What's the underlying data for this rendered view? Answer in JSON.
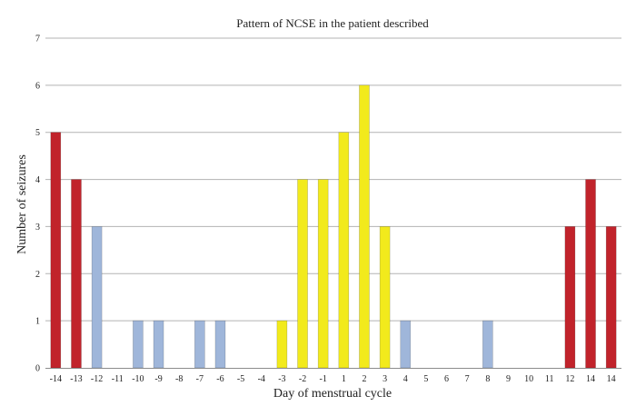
{
  "chart_data": {
    "type": "bar",
    "title": "Pattern of NCSE in the patient described",
    "xlabel": "Day of menstrual cycle",
    "ylabel": "Number of seizures",
    "ylim": [
      0,
      7
    ],
    "yticks": [
      "0",
      "1",
      "2",
      "3",
      "4",
      "5",
      "6",
      "7"
    ],
    "grid": true,
    "categories": [
      "-14",
      "-13",
      "-12",
      "-11",
      "-10",
      "-9",
      "-8",
      "-7",
      "-6",
      "-5",
      "-4",
      "-3",
      "-2",
      "-1",
      "1",
      "2",
      "3",
      "4",
      "5",
      "6",
      "7",
      "8",
      "9",
      "10",
      "11",
      "12",
      "14",
      "14"
    ],
    "values": [
      5,
      4,
      3,
      0,
      1,
      1,
      0,
      1,
      1,
      0,
      0,
      1,
      4,
      4,
      5,
      6,
      3,
      1,
      0,
      0,
      0,
      1,
      0,
      0,
      0,
      3,
      4,
      3
    ],
    "bar_colors": [
      "red",
      "red",
      "blue",
      "blue",
      "blue",
      "blue",
      "blue",
      "blue",
      "blue",
      "blue",
      "blue",
      "yellow",
      "yellow",
      "yellow",
      "yellow",
      "yellow",
      "yellow",
      "blue",
      "blue",
      "blue",
      "blue",
      "blue",
      "blue",
      "blue",
      "blue",
      "red",
      "red",
      "red"
    ],
    "colors": {
      "red": "#c1232b",
      "blue": "#9fb6da",
      "yellow": "#f2ea1c"
    }
  }
}
